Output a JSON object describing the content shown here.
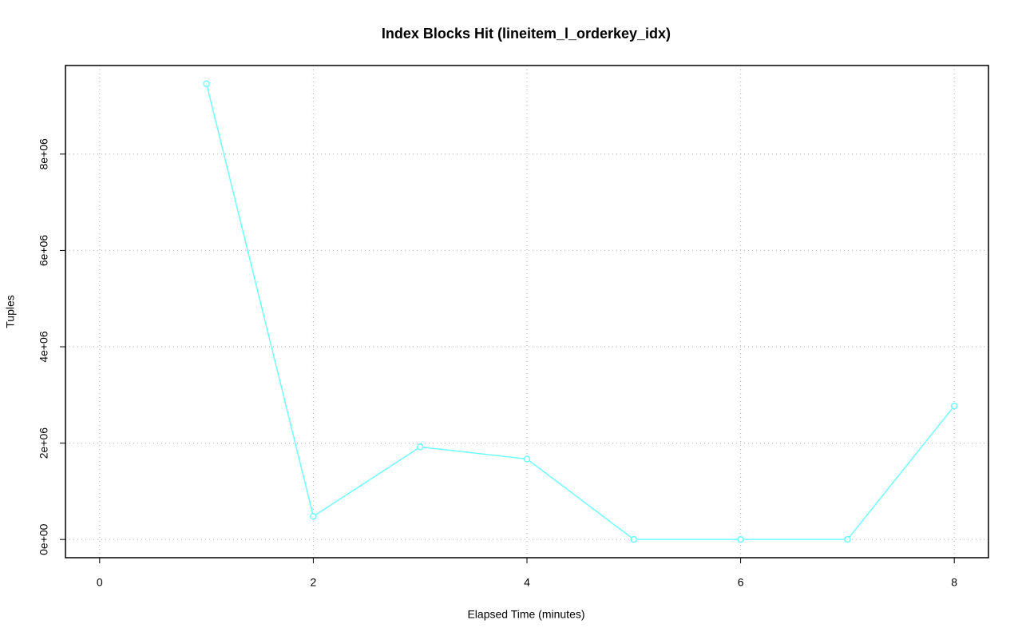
{
  "chart_data": {
    "type": "line",
    "title": "Index Blocks Hit (lineitem_l_orderkey_idx)",
    "x_label": "Elapsed Time (minutes)",
    "y_label": "Tuples",
    "x": [
      1,
      2,
      3,
      4,
      5,
      6,
      7,
      8
    ],
    "series": [
      {
        "color": "#70ffff",
        "values": [
          9460000,
          480000,
          1920000,
          1670000,
          0,
          0,
          0,
          2770000
        ]
      }
    ],
    "xlim": [
      -0.32,
      8.32
    ],
    "ylim": [
      -378400,
      9838400
    ],
    "xticks": [
      0,
      2,
      4,
      6,
      8
    ],
    "yticks": [
      {
        "value": 0,
        "label": "0e+00"
      },
      {
        "value": 2000000,
        "label": "2e+06"
      },
      {
        "value": 4000000,
        "label": "4e+06"
      },
      {
        "value": 6000000,
        "label": "6e+06"
      },
      {
        "value": 8000000,
        "label": "8e+06"
      }
    ],
    "grid": true
  }
}
